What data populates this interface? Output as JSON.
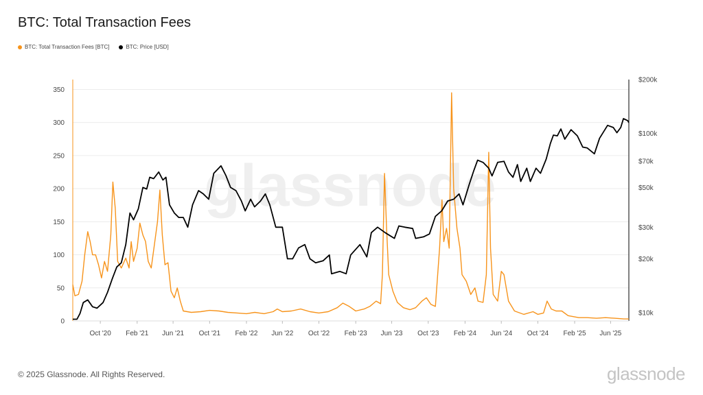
{
  "title": "BTC: Total Transaction Fees",
  "legend": [
    {
      "label": "BTC: Total Transaction Fees [BTC]",
      "color": "#f7931a"
    },
    {
      "label": "BTC: Price [USD]",
      "color": "#000000"
    }
  ],
  "footer": "© 2025 Glassnode. All Rights Reserved.",
  "brand": "glassnode",
  "watermark": "glassnode",
  "chart_data": {
    "type": "line",
    "title": "BTC: Total Transaction Fees",
    "x_tick_labels": [
      "Oct '20",
      "Feb '21",
      "Jun '21",
      "Oct '21",
      "Feb '22",
      "Jun '22",
      "Oct '22",
      "Feb '23",
      "Jun '23",
      "Oct '23",
      "Feb '24",
      "Jun '24",
      "Oct '24",
      "Feb '25",
      "Jun '25"
    ],
    "x_range": [
      "2020-07",
      "2025-08"
    ],
    "y_left": {
      "ticks": [
        0,
        50,
        100,
        150,
        200,
        250,
        300,
        350
      ],
      "ylim": [
        0,
        365
      ]
    },
    "y_right": {
      "scale": "log",
      "ticks": [
        10000,
        20000,
        30000,
        50000,
        70000,
        100000,
        200000
      ],
      "tick_labels": [
        "$10k",
        "$20k",
        "$30k",
        "$50k",
        "$70k",
        "$100k",
        "$200k"
      ],
      "ylim": [
        9000,
        200000
      ]
    },
    "grid": "horizontal",
    "legend_position": "top-left",
    "series": [
      {
        "name": "BTC: Total Transaction Fees [BTC]",
        "axis": "left",
        "color": "#f7931a",
        "points": [
          [
            "2020-07-01",
            55
          ],
          [
            "2020-07-08",
            38
          ],
          [
            "2020-07-20",
            40
          ],
          [
            "2020-08-01",
            60
          ],
          [
            "2020-08-10",
            100
          ],
          [
            "2020-08-20",
            135
          ],
          [
            "2020-08-28",
            120
          ],
          [
            "2020-09-05",
            100
          ],
          [
            "2020-09-15",
            100
          ],
          [
            "2020-09-25",
            85
          ],
          [
            "2020-10-05",
            65
          ],
          [
            "2020-10-15",
            90
          ],
          [
            "2020-10-25",
            75
          ],
          [
            "2020-11-05",
            130
          ],
          [
            "2020-11-12",
            210
          ],
          [
            "2020-11-20",
            170
          ],
          [
            "2020-11-28",
            90
          ],
          [
            "2020-12-10",
            80
          ],
          [
            "2020-12-25",
            95
          ],
          [
            "2021-01-05",
            80
          ],
          [
            "2021-01-12",
            120
          ],
          [
            "2021-01-20",
            90
          ],
          [
            "2021-02-01",
            110
          ],
          [
            "2021-02-10",
            148
          ],
          [
            "2021-02-20",
            130
          ],
          [
            "2021-03-01",
            120
          ],
          [
            "2021-03-10",
            90
          ],
          [
            "2021-03-20",
            80
          ],
          [
            "2021-04-01",
            120
          ],
          [
            "2021-04-10",
            150
          ],
          [
            "2021-04-18",
            198
          ],
          [
            "2021-04-26",
            130
          ],
          [
            "2021-05-05",
            85
          ],
          [
            "2021-05-15",
            88
          ],
          [
            "2021-05-25",
            45
          ],
          [
            "2021-06-05",
            35
          ],
          [
            "2021-06-15",
            50
          ],
          [
            "2021-06-25",
            30
          ],
          [
            "2021-07-05",
            15
          ],
          [
            "2021-08-01",
            13
          ],
          [
            "2021-09-01",
            14
          ],
          [
            "2021-10-01",
            16
          ],
          [
            "2021-11-01",
            15
          ],
          [
            "2021-12-01",
            13
          ],
          [
            "2022-01-01",
            12
          ],
          [
            "2022-02-01",
            11
          ],
          [
            "2022-03-01",
            13
          ],
          [
            "2022-04-01",
            11
          ],
          [
            "2022-05-01",
            14
          ],
          [
            "2022-05-15",
            18
          ],
          [
            "2022-06-01",
            14
          ],
          [
            "2022-07-01",
            15
          ],
          [
            "2022-08-01",
            18
          ],
          [
            "2022-09-01",
            14
          ],
          [
            "2022-10-01",
            12
          ],
          [
            "2022-11-01",
            14
          ],
          [
            "2022-12-01",
            20
          ],
          [
            "2022-12-20",
            27
          ],
          [
            "2023-01-10",
            22
          ],
          [
            "2023-02-01",
            15
          ],
          [
            "2023-03-01",
            18
          ],
          [
            "2023-03-20",
            22
          ],
          [
            "2023-04-10",
            30
          ],
          [
            "2023-04-25",
            26
          ],
          [
            "2023-05-01",
            70
          ],
          [
            "2023-05-08",
            223
          ],
          [
            "2023-05-15",
            140
          ],
          [
            "2023-05-22",
            70
          ],
          [
            "2023-06-05",
            45
          ],
          [
            "2023-06-20",
            28
          ],
          [
            "2023-07-10",
            20
          ],
          [
            "2023-08-01",
            17
          ],
          [
            "2023-08-20",
            20
          ],
          [
            "2023-09-10",
            30
          ],
          [
            "2023-09-25",
            35
          ],
          [
            "2023-10-10",
            25
          ],
          [
            "2023-10-25",
            22
          ],
          [
            "2023-11-08",
            110
          ],
          [
            "2023-11-16",
            183
          ],
          [
            "2023-11-22",
            120
          ],
          [
            "2023-12-01",
            140
          ],
          [
            "2023-12-10",
            110
          ],
          [
            "2023-12-18",
            345
          ],
          [
            "2023-12-25",
            200
          ],
          [
            "2024-01-05",
            140
          ],
          [
            "2024-01-15",
            110
          ],
          [
            "2024-01-22",
            70
          ],
          [
            "2024-02-05",
            60
          ],
          [
            "2024-02-20",
            40
          ],
          [
            "2024-03-05",
            50
          ],
          [
            "2024-03-15",
            30
          ],
          [
            "2024-04-01",
            28
          ],
          [
            "2024-04-12",
            70
          ],
          [
            "2024-04-20",
            255
          ],
          [
            "2024-04-26",
            110
          ],
          [
            "2024-05-05",
            40
          ],
          [
            "2024-05-20",
            30
          ],
          [
            "2024-06-01",
            75
          ],
          [
            "2024-06-10",
            70
          ],
          [
            "2024-06-25",
            30
          ],
          [
            "2024-07-15",
            15
          ],
          [
            "2024-08-15",
            10
          ],
          [
            "2024-09-15",
            14
          ],
          [
            "2024-10-01",
            10
          ],
          [
            "2024-10-20",
            12
          ],
          [
            "2024-11-01",
            30
          ],
          [
            "2024-11-15",
            18
          ],
          [
            "2024-12-01",
            15
          ],
          [
            "2024-12-20",
            15
          ],
          [
            "2025-01-10",
            8
          ],
          [
            "2025-02-15",
            5
          ],
          [
            "2025-03-15",
            5
          ],
          [
            "2025-04-15",
            4
          ],
          [
            "2025-05-15",
            5
          ],
          [
            "2025-06-15",
            4
          ],
          [
            "2025-07-15",
            3
          ],
          [
            "2025-08-01",
            3
          ]
        ]
      },
      {
        "name": "BTC: Price [USD]",
        "axis": "right",
        "color": "#000000",
        "points": [
          [
            "2020-07-01",
            9200
          ],
          [
            "2020-07-15",
            9200
          ],
          [
            "2020-07-25",
            9900
          ],
          [
            "2020-08-05",
            11400
          ],
          [
            "2020-08-20",
            11800
          ],
          [
            "2020-09-05",
            10800
          ],
          [
            "2020-09-20",
            10600
          ],
          [
            "2020-10-10",
            11400
          ],
          [
            "2020-10-25",
            13000
          ],
          [
            "2020-11-10",
            15500
          ],
          [
            "2020-11-25",
            18000
          ],
          [
            "2020-12-10",
            19000
          ],
          [
            "2020-12-25",
            24000
          ],
          [
            "2021-01-08",
            36000
          ],
          [
            "2021-01-20",
            33000
          ],
          [
            "2021-02-05",
            38000
          ],
          [
            "2021-02-20",
            50000
          ],
          [
            "2021-03-05",
            49000
          ],
          [
            "2021-03-15",
            57000
          ],
          [
            "2021-03-28",
            56000
          ],
          [
            "2021-04-14",
            61000
          ],
          [
            "2021-04-28",
            55000
          ],
          [
            "2021-05-08",
            57000
          ],
          [
            "2021-05-20",
            40000
          ],
          [
            "2021-06-05",
            36000
          ],
          [
            "2021-06-20",
            34000
          ],
          [
            "2021-07-05",
            34000
          ],
          [
            "2021-07-20",
            30000
          ],
          [
            "2021-08-05",
            40000
          ],
          [
            "2021-08-25",
            48000
          ],
          [
            "2021-09-10",
            46000
          ],
          [
            "2021-09-28",
            43000
          ],
          [
            "2021-10-15",
            60000
          ],
          [
            "2021-11-08",
            66000
          ],
          [
            "2021-11-25",
            58000
          ],
          [
            "2021-12-10",
            50000
          ],
          [
            "2021-12-28",
            48000
          ],
          [
            "2022-01-15",
            42000
          ],
          [
            "2022-01-28",
            37000
          ],
          [
            "2022-02-15",
            43000
          ],
          [
            "2022-02-28",
            39000
          ],
          [
            "2022-03-20",
            42000
          ],
          [
            "2022-04-05",
            46000
          ],
          [
            "2022-04-20",
            40000
          ],
          [
            "2022-05-10",
            30000
          ],
          [
            "2022-06-01",
            30000
          ],
          [
            "2022-06-18",
            20000
          ],
          [
            "2022-07-05",
            20000
          ],
          [
            "2022-07-25",
            23000
          ],
          [
            "2022-08-15",
            24000
          ],
          [
            "2022-09-01",
            20000
          ],
          [
            "2022-09-20",
            19000
          ],
          [
            "2022-10-15",
            19500
          ],
          [
            "2022-11-05",
            21000
          ],
          [
            "2022-11-12",
            16500
          ],
          [
            "2022-12-10",
            17000
          ],
          [
            "2022-12-31",
            16500
          ],
          [
            "2023-01-15",
            21000
          ],
          [
            "2023-02-15",
            24000
          ],
          [
            "2023-03-10",
            20500
          ],
          [
            "2023-03-25",
            28000
          ],
          [
            "2023-04-15",
            30000
          ],
          [
            "2023-05-10",
            28000
          ],
          [
            "2023-05-25",
            27000
          ],
          [
            "2023-06-10",
            26000
          ],
          [
            "2023-06-25",
            30500
          ],
          [
            "2023-07-15",
            30000
          ],
          [
            "2023-08-10",
            29500
          ],
          [
            "2023-08-20",
            26000
          ],
          [
            "2023-09-15",
            26500
          ],
          [
            "2023-10-05",
            27500
          ],
          [
            "2023-10-25",
            34500
          ],
          [
            "2023-11-15",
            37000
          ],
          [
            "2023-12-05",
            42000
          ],
          [
            "2023-12-25",
            43000
          ],
          [
            "2024-01-12",
            46000
          ],
          [
            "2024-01-25",
            40000
          ],
          [
            "2024-02-15",
            52000
          ],
          [
            "2024-03-01",
            62000
          ],
          [
            "2024-03-14",
            71000
          ],
          [
            "2024-04-01",
            69000
          ],
          [
            "2024-04-20",
            64000
          ],
          [
            "2024-05-01",
            58000
          ],
          [
            "2024-05-20",
            69000
          ],
          [
            "2024-06-10",
            70000
          ],
          [
            "2024-06-25",
            61000
          ],
          [
            "2024-07-10",
            57000
          ],
          [
            "2024-07-25",
            67000
          ],
          [
            "2024-08-05",
            54000
          ],
          [
            "2024-08-25",
            64000
          ],
          [
            "2024-09-06",
            54000
          ],
          [
            "2024-09-25",
            64000
          ],
          [
            "2024-10-10",
            60000
          ],
          [
            "2024-10-29",
            72000
          ],
          [
            "2024-11-12",
            88000
          ],
          [
            "2024-11-22",
            98000
          ],
          [
            "2024-12-05",
            97000
          ],
          [
            "2024-12-17",
            106000
          ],
          [
            "2024-12-30",
            93000
          ],
          [
            "2025-01-20",
            105000
          ],
          [
            "2025-02-10",
            97000
          ],
          [
            "2025-02-28",
            84000
          ],
          [
            "2025-03-15",
            83000
          ],
          [
            "2025-04-08",
            77000
          ],
          [
            "2025-04-25",
            94000
          ],
          [
            "2025-05-22",
            111000
          ],
          [
            "2025-06-10",
            108000
          ],
          [
            "2025-06-22",
            101000
          ],
          [
            "2025-07-05",
            108000
          ],
          [
            "2025-07-14",
            121000
          ],
          [
            "2025-07-28",
            118000
          ],
          [
            "2025-08-01",
            115000
          ]
        ]
      }
    ]
  }
}
